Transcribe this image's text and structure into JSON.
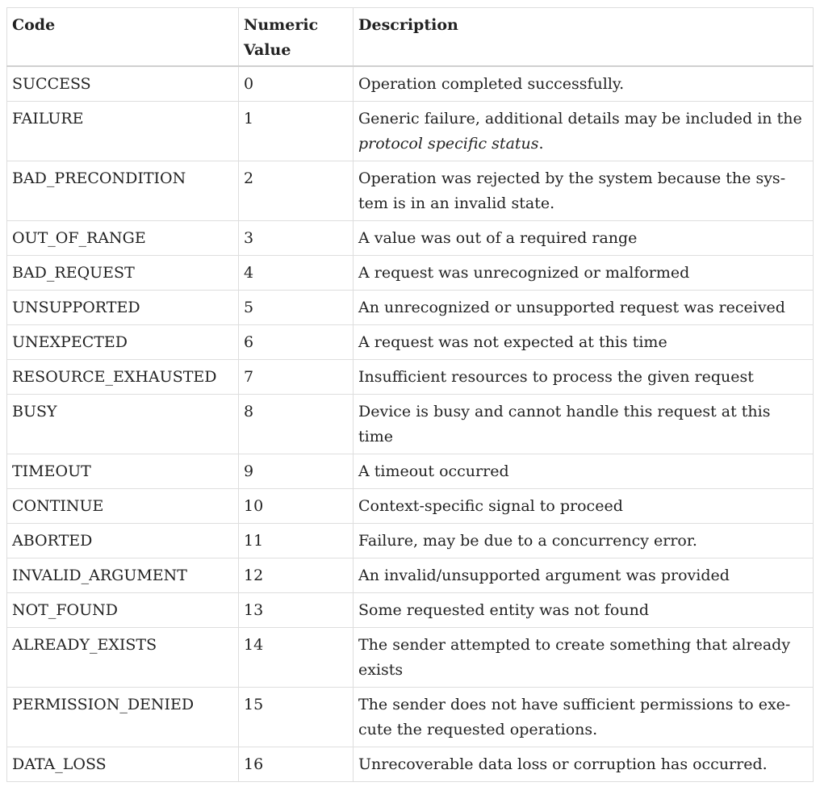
{
  "table": {
    "headers": {
      "code": "Code",
      "value": "Numeric Value",
      "description": "Description"
    },
    "rows": [
      {
        "code": "SUCCESS",
        "value": "0",
        "desc_before": "Operation completed successfully.",
        "desc_em": "",
        "desc_after": ""
      },
      {
        "code": "FAILURE",
        "value": "1",
        "desc_before": "Generic failure, additional details may be included in the ",
        "desc_em": "protocol specific status",
        "desc_after": "."
      },
      {
        "code": "BAD_PRECONDITION",
        "value": "2",
        "desc_before": "Operation was rejected by the system because the sys­tem is in an invalid state.",
        "desc_em": "",
        "desc_after": ""
      },
      {
        "code": "OUT_OF_RANGE",
        "value": "3",
        "desc_before": "A value was out of a required range",
        "desc_em": "",
        "desc_after": ""
      },
      {
        "code": "BAD_REQUEST",
        "value": "4",
        "desc_before": "A request was unrecognized or malformed",
        "desc_em": "",
        "desc_after": ""
      },
      {
        "code": "UNSUPPORTED",
        "value": "5",
        "desc_before": "An unrecognized or unsupported request was received",
        "desc_em": "",
        "desc_after": ""
      },
      {
        "code": "UNEXPECTED",
        "value": "6",
        "desc_before": "A request was not expected at this time",
        "desc_em": "",
        "desc_after": ""
      },
      {
        "code": "RESOURCE_EXHAUSTED",
        "value": "7",
        "desc_before": "Insufficient resources to process the given request",
        "desc_em": "",
        "desc_after": ""
      },
      {
        "code": "BUSY",
        "value": "8",
        "desc_before": "Device is busy and cannot handle this request at this time",
        "desc_em": "",
        "desc_after": ""
      },
      {
        "code": "TIMEOUT",
        "value": "9",
        "desc_before": "A timeout occurred",
        "desc_em": "",
        "desc_after": ""
      },
      {
        "code": "CONTINUE",
        "value": "10",
        "desc_before": "Context-specific signal to proceed",
        "desc_em": "",
        "desc_after": ""
      },
      {
        "code": "ABORTED",
        "value": "11",
        "desc_before": "Failure, may be due to a concurrency error.",
        "desc_em": "",
        "desc_after": ""
      },
      {
        "code": "INVALID_ARGUMENT",
        "value": "12",
        "desc_before": "An invalid/unsupported argument was provided",
        "desc_em": "",
        "desc_after": ""
      },
      {
        "code": "NOT_FOUND",
        "value": "13",
        "desc_before": "Some requested entity was not found",
        "desc_em": "",
        "desc_after": ""
      },
      {
        "code": "ALREADY_EXISTS",
        "value": "14",
        "desc_before": "The sender attempted to create something that already exists",
        "desc_em": "",
        "desc_after": ""
      },
      {
        "code": "PERMISSION_DENIED",
        "value": "15",
        "desc_before": "The sender does not have sufficient permissions to exe­cute the requested operations.",
        "desc_em": "",
        "desc_after": ""
      },
      {
        "code": "DATA_LOSS",
        "value": "16",
        "desc_before": "Unrecoverable data loss or corruption has occurred.",
        "desc_em": "",
        "desc_after": ""
      }
    ]
  }
}
